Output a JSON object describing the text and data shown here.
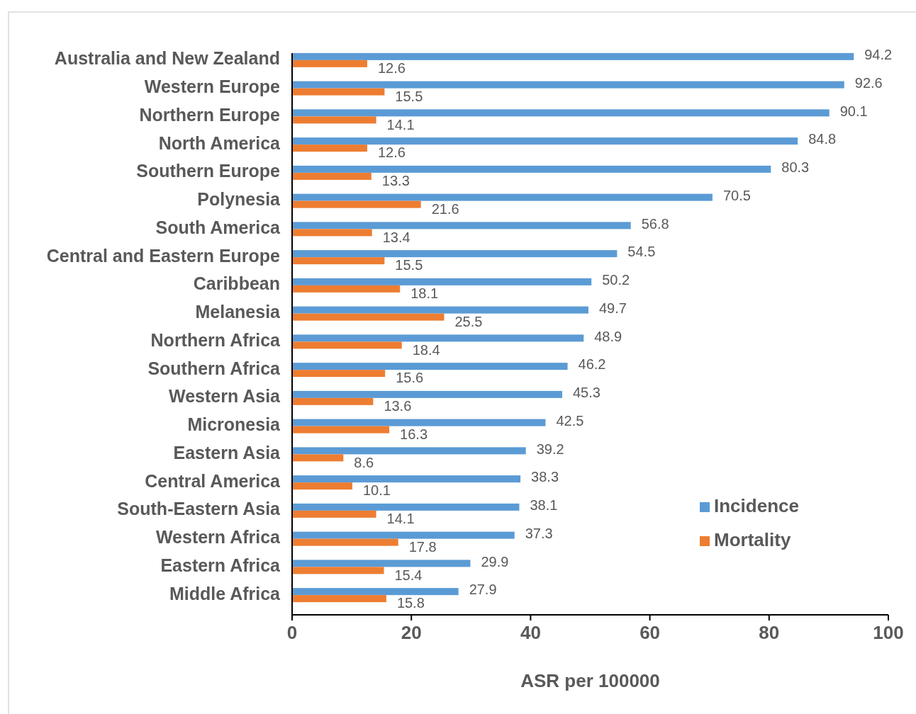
{
  "chart_data": {
    "type": "bar",
    "orientation": "horizontal",
    "xlabel": "ASR per 100000",
    "categories": [
      "Australia and New Zealand",
      "Western Europe",
      "Northern Europe",
      "North America",
      "Southern Europe",
      "Polynesia",
      "South America",
      "Central and Eastern Europe",
      "Caribbean",
      "Melanesia",
      "Northern Africa",
      "Southern Africa",
      "Western Asia",
      "Micronesia",
      "Eastern Asia",
      "Central America",
      "South-Eastern Asia",
      "Western Africa",
      "Eastern Africa",
      "Middle Africa"
    ],
    "series": [
      {
        "name": "Incidence",
        "color": "#5b9bd5",
        "values": [
          94.2,
          92.6,
          90.1,
          84.8,
          80.3,
          70.5,
          56.8,
          54.5,
          50.2,
          49.7,
          48.9,
          46.2,
          45.3,
          42.5,
          39.2,
          38.3,
          38.1,
          37.3,
          29.9,
          27.9
        ]
      },
      {
        "name": "Mortality",
        "color": "#ed7d31",
        "values": [
          12.6,
          15.5,
          14.1,
          12.6,
          13.3,
          21.6,
          13.4,
          15.5,
          18.1,
          25.5,
          18.4,
          15.6,
          13.6,
          16.3,
          8.6,
          10.1,
          14.1,
          17.8,
          15.4,
          15.8
        ]
      }
    ],
    "xlim": [
      0,
      100
    ],
    "xticks": [
      0,
      20,
      40,
      60,
      80,
      100
    ],
    "grid": false,
    "legend": "bottom right",
    "data_labels": true
  }
}
